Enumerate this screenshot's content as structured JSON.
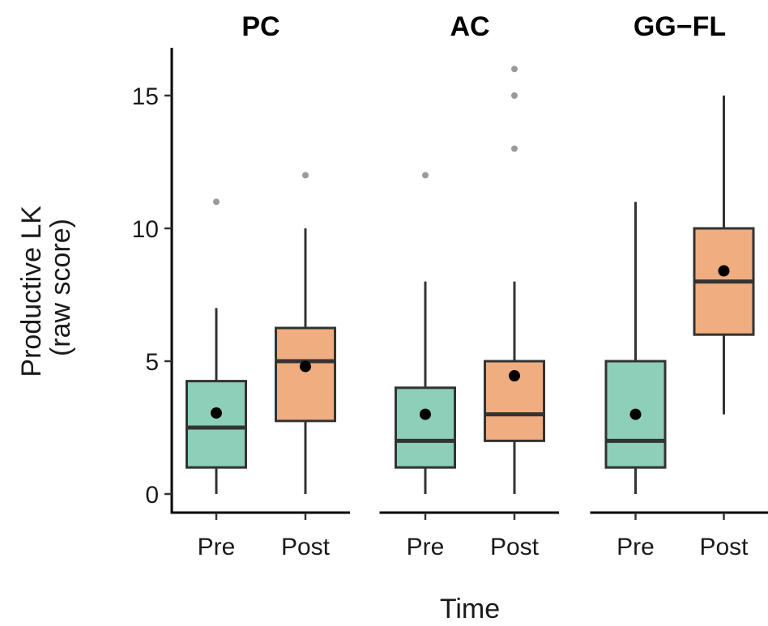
{
  "chart_data": {
    "type": "boxplot",
    "panels": [
      {
        "title": "PC",
        "boxes": [
          {
            "label": "Pre",
            "min": 0,
            "q1": 1,
            "median": 2.5,
            "q3": 4.25,
            "max": 7,
            "mean": 3.05,
            "outliers": [
              11
            ]
          },
          {
            "label": "Post",
            "min": 0,
            "q1": 2.75,
            "median": 5,
            "q3": 6.25,
            "max": 10,
            "mean": 4.8,
            "outliers": [
              12
            ]
          }
        ]
      },
      {
        "title": "AC",
        "boxes": [
          {
            "label": "Pre",
            "min": 0,
            "q1": 1,
            "median": 2,
            "q3": 4,
            "max": 8,
            "mean": 3.0,
            "outliers": [
              12
            ]
          },
          {
            "label": "Post",
            "min": 0,
            "q1": 2,
            "median": 3,
            "q3": 5,
            "max": 8,
            "mean": 4.45,
            "outliers": [
              13,
              15,
              16
            ]
          }
        ]
      },
      {
        "title": "GG−FL",
        "boxes": [
          {
            "label": "Pre",
            "min": 0,
            "q1": 1,
            "median": 2,
            "q3": 5,
            "max": 11,
            "mean": 3.0,
            "outliers": []
          },
          {
            "label": "Post",
            "min": 3,
            "q1": 6,
            "median": 8,
            "q3": 10,
            "max": 15,
            "mean": 8.4,
            "outliers": []
          }
        ]
      }
    ],
    "xlabel": "Time",
    "ylabel_line1": "Productive LK",
    "ylabel_line2": "(raw score)",
    "y_ticks": [
      0,
      5,
      10,
      15
    ],
    "ylim": [
      -0.7,
      16.8
    ],
    "colors": {
      "Pre": "#8ecfba",
      "Post": "#f0ad7f",
      "outlier": "#9a9a9a",
      "mean": "#000000",
      "stroke": "#333333"
    },
    "grid": false,
    "legend": "none"
  }
}
